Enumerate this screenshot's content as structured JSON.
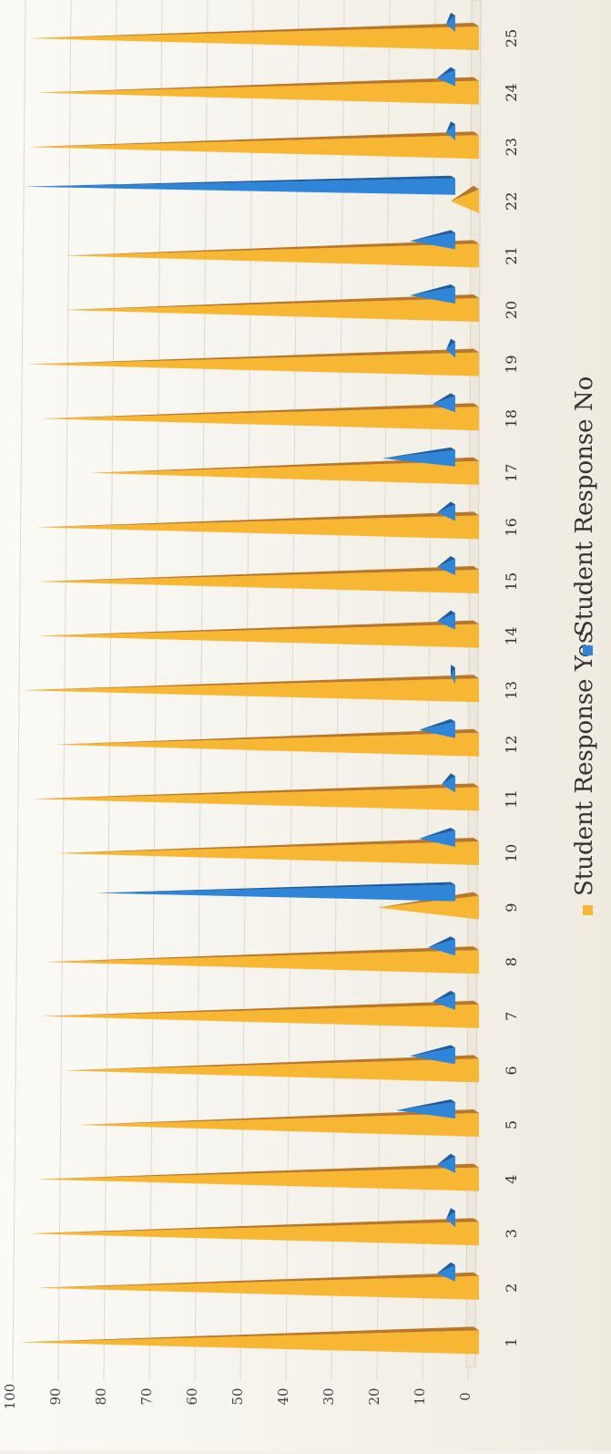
{
  "chart_data": {
    "type": "bar",
    "categories": [
      "1",
      "2",
      "3",
      "4",
      "5",
      "6",
      "7",
      "8",
      "9",
      "10",
      "11",
      "12",
      "13",
      "14",
      "15",
      "16",
      "17",
      "18",
      "19",
      "20",
      "21",
      "22",
      "23",
      "24",
      "25"
    ],
    "series": [
      {
        "name": "Student Response Yes",
        "color": "#f7b733",
        "values": [
          100,
          96,
          98,
          96,
          87,
          90,
          95,
          94,
          21,
          92,
          97,
          92,
          99,
          96,
          96,
          96,
          84,
          95,
          98,
          90,
          90,
          5,
          98,
          96,
          98
        ]
      },
      {
        "name": "Student Response No",
        "color": "#2f86d9",
        "values": [
          0,
          4,
          2,
          4,
          13,
          10,
          5,
          6,
          79,
          8,
          3,
          8,
          1,
          4,
          4,
          4,
          16,
          5,
          2,
          10,
          10,
          95,
          2,
          4,
          2
        ]
      }
    ],
    "y_ticks": [
      "0",
      "10",
      "20",
      "30",
      "40",
      "50",
      "60",
      "70",
      "80",
      "90",
      "100"
    ],
    "ylim": [
      0,
      100
    ],
    "grid": true,
    "legend_placement": "bottom",
    "orientation": "rotated-90-clockwise"
  }
}
